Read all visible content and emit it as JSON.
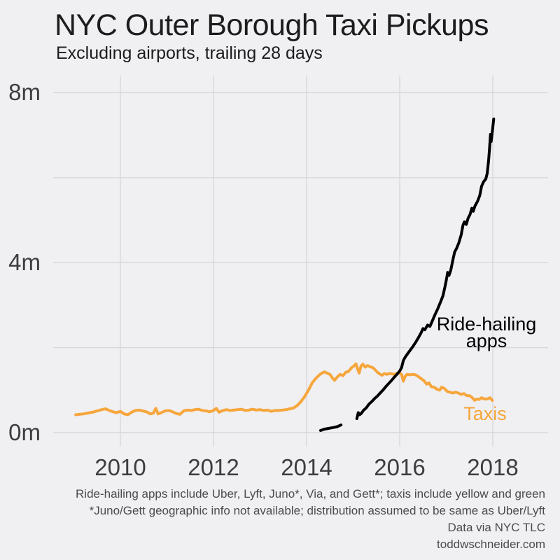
{
  "header": {
    "title": "NYC Outer Borough Taxi Pickups",
    "subtitle": "Excluding airports, trailing 28 days"
  },
  "footer": {
    "lines": [
      "Ride-hailing apps include Uber, Lyft, Juno*, Via, and Gett*; taxis include yellow and green",
      "*Juno/Gett geographic info not available; distribution assumed to be same as Uber/Lyft",
      "Data via NYC TLC",
      "toddwschneider.com"
    ]
  },
  "colors": {
    "background": "#F0EFF2",
    "gridline": "#D9D7DC",
    "axis_text": "#3D3D3D",
    "title_text": "#1C1C1C",
    "footer_text": "#4B4B4B",
    "taxis_orange": "#F6A63B",
    "ridehail_black": "#000000"
  },
  "chart_data": {
    "type": "line",
    "title": "NYC Outer Borough Taxi Pickups",
    "subtitle": "Excluding airports, trailing 28 days",
    "xlabel": "",
    "ylabel": "",
    "units": "millions of pickups, trailing 28 days",
    "grid": true,
    "legend_position": "inline-annotations",
    "x_axis": {
      "range": [
        2008.85,
        2018.25
      ],
      "ticks": [
        2010,
        2012,
        2014,
        2016,
        2018
      ],
      "tick_labels": [
        "2010",
        "2012",
        "2014",
        "2016",
        "2018"
      ],
      "gridline_years": [
        2010,
        2012,
        2014,
        2016,
        2018
      ]
    },
    "y_axis": {
      "range": [
        0,
        8.35
      ],
      "ticks": [
        0,
        4,
        8
      ],
      "tick_labels": [
        "0m",
        "4m",
        "8m"
      ],
      "gridline_values": [
        0,
        2,
        4,
        6,
        8
      ]
    },
    "series": [
      {
        "name": "Taxis",
        "color": "#F6A63B",
        "label": {
          "text_lines": [
            "Taxis"
          ],
          "x": 2017.84,
          "y": 0.45
        },
        "segments": [
          [
            [
              2009.04,
              0.42
            ],
            [
              2009.12,
              0.43
            ],
            [
              2009.2,
              0.44
            ],
            [
              2009.3,
              0.46
            ],
            [
              2009.4,
              0.48
            ],
            [
              2009.5,
              0.51
            ],
            [
              2009.6,
              0.54
            ],
            [
              2009.68,
              0.56
            ],
            [
              2009.76,
              0.52
            ],
            [
              2009.84,
              0.49
            ],
            [
              2009.92,
              0.47
            ],
            [
              2010.0,
              0.5
            ],
            [
              2010.08,
              0.44
            ],
            [
              2010.16,
              0.42
            ],
            [
              2010.24,
              0.48
            ],
            [
              2010.32,
              0.52
            ],
            [
              2010.4,
              0.53
            ],
            [
              2010.48,
              0.51
            ],
            [
              2010.56,
              0.49
            ],
            [
              2010.64,
              0.44
            ],
            [
              2010.71,
              0.46
            ],
            [
              2010.76,
              0.57
            ],
            [
              2010.81,
              0.44
            ],
            [
              2010.88,
              0.47
            ],
            [
              2010.96,
              0.51
            ],
            [
              2011.04,
              0.52
            ],
            [
              2011.12,
              0.49
            ],
            [
              2011.2,
              0.45
            ],
            [
              2011.28,
              0.43
            ],
            [
              2011.36,
              0.51
            ],
            [
              2011.44,
              0.53
            ],
            [
              2011.52,
              0.52
            ],
            [
              2011.6,
              0.54
            ],
            [
              2011.68,
              0.55
            ],
            [
              2011.76,
              0.52
            ],
            [
              2011.84,
              0.51
            ],
            [
              2011.92,
              0.49
            ],
            [
              2012.0,
              0.52
            ],
            [
              2012.06,
              0.57
            ],
            [
              2012.12,
              0.48
            ],
            [
              2012.2,
              0.52
            ],
            [
              2012.28,
              0.54
            ],
            [
              2012.36,
              0.52
            ],
            [
              2012.44,
              0.53
            ],
            [
              2012.52,
              0.54
            ],
            [
              2012.6,
              0.55
            ],
            [
              2012.68,
              0.52
            ],
            [
              2012.76,
              0.53
            ],
            [
              2012.84,
              0.55
            ],
            [
              2012.92,
              0.53
            ],
            [
              2013.0,
              0.54
            ],
            [
              2013.08,
              0.52
            ],
            [
              2013.16,
              0.53
            ],
            [
              2013.24,
              0.5
            ],
            [
              2013.32,
              0.52
            ],
            [
              2013.4,
              0.52
            ],
            [
              2013.48,
              0.53
            ],
            [
              2013.56,
              0.54
            ],
            [
              2013.64,
              0.56
            ],
            [
              2013.72,
              0.58
            ],
            [
              2013.8,
              0.64
            ],
            [
              2013.88,
              0.73
            ],
            [
              2013.96,
              0.85
            ],
            [
              2014.04,
              1.0
            ],
            [
              2014.12,
              1.17
            ],
            [
              2014.2,
              1.28
            ],
            [
              2014.3,
              1.38
            ],
            [
              2014.38,
              1.43
            ],
            [
              2014.44,
              1.4
            ],
            [
              2014.5,
              1.37
            ],
            [
              2014.56,
              1.28
            ],
            [
              2014.6,
              1.23
            ],
            [
              2014.66,
              1.31
            ],
            [
              2014.72,
              1.37
            ],
            [
              2014.78,
              1.34
            ],
            [
              2014.84,
              1.42
            ],
            [
              2014.9,
              1.44
            ],
            [
              2014.96,
              1.52
            ],
            [
              2015.02,
              1.57
            ],
            [
              2015.06,
              1.62
            ],
            [
              2015.1,
              1.49
            ],
            [
              2015.13,
              1.4
            ],
            [
              2015.17,
              1.57
            ],
            [
              2015.21,
              1.61
            ],
            [
              2015.26,
              1.54
            ],
            [
              2015.31,
              1.58
            ],
            [
              2015.36,
              1.55
            ],
            [
              2015.42,
              1.53
            ],
            [
              2015.47,
              1.48
            ],
            [
              2015.52,
              1.42
            ],
            [
              2015.57,
              1.38
            ],
            [
              2015.62,
              1.35
            ],
            [
              2015.67,
              1.39
            ],
            [
              2015.72,
              1.37
            ],
            [
              2015.78,
              1.39
            ],
            [
              2015.84,
              1.38
            ],
            [
              2015.9,
              1.37
            ],
            [
              2015.95,
              1.4
            ],
            [
              2016.0,
              1.4
            ],
            [
              2016.04,
              1.37
            ],
            [
              2016.08,
              1.21
            ],
            [
              2016.12,
              1.33
            ],
            [
              2016.16,
              1.37
            ],
            [
              2016.22,
              1.36
            ],
            [
              2016.28,
              1.37
            ],
            [
              2016.34,
              1.36
            ],
            [
              2016.4,
              1.32
            ],
            [
              2016.46,
              1.27
            ],
            [
              2016.52,
              1.22
            ],
            [
              2016.58,
              1.14
            ],
            [
              2016.63,
              1.17
            ],
            [
              2016.68,
              1.08
            ],
            [
              2016.74,
              1.07
            ],
            [
              2016.8,
              1.02
            ],
            [
              2016.86,
              1.0
            ],
            [
              2016.9,
              1.07
            ],
            [
              2016.96,
              1.04
            ],
            [
              2017.02,
              0.97
            ],
            [
              2017.08,
              0.95
            ],
            [
              2017.14,
              0.93
            ],
            [
              2017.2,
              0.95
            ],
            [
              2017.26,
              0.93
            ],
            [
              2017.32,
              0.9
            ],
            [
              2017.38,
              0.92
            ],
            [
              2017.44,
              0.87
            ],
            [
              2017.5,
              0.87
            ],
            [
              2017.56,
              0.82
            ],
            [
              2017.61,
              0.76
            ],
            [
              2017.66,
              0.79
            ],
            [
              2017.71,
              0.78
            ],
            [
              2017.76,
              0.82
            ],
            [
              2017.82,
              0.79
            ],
            [
              2017.88,
              0.79
            ],
            [
              2017.94,
              0.82
            ],
            [
              2017.99,
              0.76
            ]
          ]
        ]
      },
      {
        "name": "Ride-hailing apps",
        "color": "#000000",
        "label": {
          "text_lines": [
            "Ride-hailing",
            "apps"
          ],
          "x": 2017.87,
          "y": 2.35
        },
        "segments": [
          [
            [
              2014.3,
              0.05
            ],
            [
              2014.38,
              0.08
            ],
            [
              2014.48,
              0.1
            ],
            [
              2014.58,
              0.12
            ],
            [
              2014.66,
              0.14
            ],
            [
              2014.74,
              0.18
            ]
          ],
          [
            [
              2015.08,
              0.33
            ],
            [
              2015.11,
              0.47
            ],
            [
              2015.14,
              0.42
            ],
            [
              2015.18,
              0.46
            ],
            [
              2015.22,
              0.52
            ],
            [
              2015.28,
              0.58
            ],
            [
              2015.34,
              0.67
            ],
            [
              2015.4,
              0.73
            ],
            [
              2015.46,
              0.8
            ],
            [
              2015.52,
              0.86
            ],
            [
              2015.58,
              0.93
            ],
            [
              2015.64,
              1.0
            ],
            [
              2015.7,
              1.08
            ],
            [
              2015.76,
              1.15
            ],
            [
              2015.82,
              1.22
            ],
            [
              2015.88,
              1.3
            ],
            [
              2015.94,
              1.37
            ],
            [
              2016.0,
              1.45
            ],
            [
              2016.04,
              1.53
            ],
            [
              2016.08,
              1.7
            ],
            [
              2016.12,
              1.78
            ],
            [
              2016.16,
              1.84
            ],
            [
              2016.22,
              1.93
            ],
            [
              2016.28,
              2.02
            ],
            [
              2016.34,
              2.12
            ],
            [
              2016.4,
              2.23
            ],
            [
              2016.46,
              2.35
            ],
            [
              2016.5,
              2.45
            ],
            [
              2016.54,
              2.42
            ],
            [
              2016.6,
              2.53
            ],
            [
              2016.65,
              2.5
            ],
            [
              2016.7,
              2.63
            ],
            [
              2016.76,
              2.78
            ],
            [
              2016.82,
              2.92
            ],
            [
              2016.88,
              3.08
            ],
            [
              2016.93,
              3.22
            ],
            [
              2016.97,
              3.42
            ],
            [
              2017.0,
              3.58
            ],
            [
              2017.03,
              3.77
            ],
            [
              2017.06,
              3.7
            ],
            [
              2017.1,
              3.83
            ],
            [
              2017.14,
              4.05
            ],
            [
              2017.18,
              4.25
            ],
            [
              2017.22,
              4.33
            ],
            [
              2017.27,
              4.47
            ],
            [
              2017.32,
              4.65
            ],
            [
              2017.36,
              4.88
            ],
            [
              2017.39,
              4.96
            ],
            [
              2017.43,
              4.9
            ],
            [
              2017.47,
              5.05
            ],
            [
              2017.51,
              5.13
            ],
            [
              2017.55,
              5.28
            ],
            [
              2017.58,
              5.21
            ],
            [
              2017.62,
              5.34
            ],
            [
              2017.67,
              5.44
            ],
            [
              2017.72,
              5.58
            ],
            [
              2017.76,
              5.8
            ],
            [
              2017.8,
              5.9
            ],
            [
              2017.85,
              5.97
            ],
            [
              2017.88,
              6.1
            ],
            [
              2017.91,
              6.4
            ],
            [
              2017.93,
              6.68
            ],
            [
              2017.95,
              7.02
            ],
            [
              2017.965,
              6.85
            ],
            [
              2018.0,
              7.18
            ],
            [
              2018.02,
              7.38
            ]
          ]
        ]
      }
    ]
  }
}
